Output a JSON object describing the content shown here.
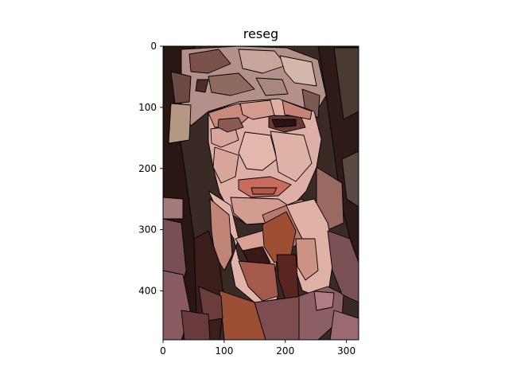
{
  "title": "reseg",
  "image": {
    "description_kind": "segmented image (region boundaries drawn in black)",
    "palette": {
      "background_dark": "#3a2a26",
      "hair_dark": "#2a1714",
      "skin_light": "#deb0a5",
      "skin_mid": "#c98a7c",
      "lip": "#c86c5e",
      "shadow_red": "#5a2420",
      "mauve": "#8a5a62",
      "brown": "#9e4f33",
      "tan": "#b49882",
      "outline": "#000000"
    }
  },
  "x_axis": {
    "range": [
      0,
      320
    ],
    "ticks": [
      {
        "value": 0,
        "label": "0"
      },
      {
        "value": 100,
        "label": "100"
      },
      {
        "value": 200,
        "label": "200"
      },
      {
        "value": 300,
        "label": "300"
      }
    ]
  },
  "y_axis": {
    "range": [
      0,
      480
    ],
    "inverted": true,
    "ticks": [
      {
        "value": 0,
        "label": "0"
      },
      {
        "value": 100,
        "label": "100"
      },
      {
        "value": 200,
        "label": "200"
      },
      {
        "value": 300,
        "label": "300"
      },
      {
        "value": 400,
        "label": "400"
      }
    ]
  }
}
